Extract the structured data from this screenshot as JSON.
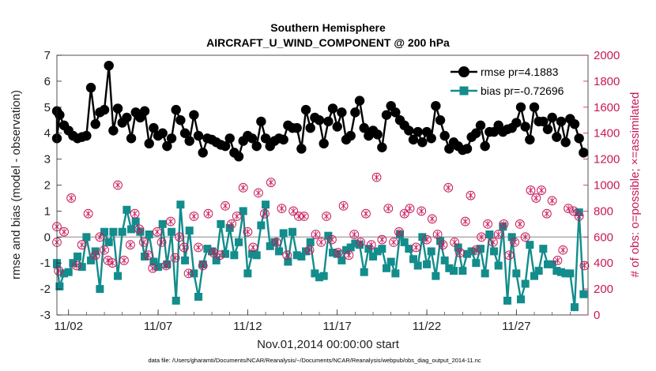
{
  "chart_data": {
    "type": "line",
    "title": "Southern Hemisphere",
    "subtitle": "AIRCRAFT_U_WIND_COMPONENT @ 200 hPa",
    "xlabel": "Nov.01,2014 00:00:00 start",
    "ylabel": "rmse and bias (model - observation)",
    "ylabel_right": "# of obs: o=possible; ×=assimilated",
    "xlim": [
      0.35,
      30.0
    ],
    "ylim": [
      -3,
      7
    ],
    "ylim_right": [
      0,
      2000
    ],
    "x_ticks": [
      {
        "value": 1,
        "label": "11/02"
      },
      {
        "value": 6,
        "label": "11/07"
      },
      {
        "value": 11,
        "label": "11/12"
      },
      {
        "value": 16,
        "label": "11/17"
      },
      {
        "value": 21,
        "label": "11/22"
      },
      {
        "value": 26,
        "label": "11/27"
      }
    ],
    "y_ticks": [
      -3,
      -2,
      -1,
      0,
      1,
      2,
      3,
      4,
      5,
      6,
      7
    ],
    "y_ticks_right": [
      0,
      200,
      400,
      600,
      800,
      1000,
      1200,
      1400,
      1600,
      1800,
      2000
    ],
    "legend": {
      "position": "top-right",
      "entries": [
        "rmse pr=4.1883",
        "bias pr=-0.72696"
      ]
    },
    "colors": {
      "rmse": "#000000",
      "bias": "#138c8c",
      "obs": "#c8185a",
      "zero_line": "#b0b0b0"
    },
    "footnote": "data file: /Users/gharamti/Documents/NCAR/Reanalysis/~/Documents/NCAR/Reanalysis/webpub/obs_diag_output_2014-11.nc",
    "series": [
      {
        "name": "rmse pr=4.1883",
        "axis": "left",
        "marker": "circle",
        "x": [
          0.0,
          0.25,
          0.5,
          0.75,
          1.0,
          1.25,
          1.5,
          1.75,
          2.0,
          2.25,
          2.5,
          2.75,
          3.0,
          3.25,
          3.5,
          3.75,
          4.0,
          4.25,
          4.5,
          4.75,
          5.0,
          5.25,
          5.5,
          5.75,
          6.0,
          6.25,
          6.5,
          6.75,
          7.0,
          7.25,
          7.5,
          7.75,
          8.0,
          8.25,
          8.5,
          8.75,
          9.0,
          9.25,
          9.5,
          9.75,
          10.0,
          10.25,
          10.5,
          10.75,
          11.0,
          11.25,
          11.5,
          11.75,
          12.0,
          12.25,
          12.5,
          12.75,
          13.0,
          13.25,
          13.5,
          13.75,
          14.0,
          14.25,
          14.5,
          14.75,
          15.0,
          15.25,
          15.5,
          15.75,
          16.0,
          16.25,
          16.5,
          16.75,
          17.0,
          17.25,
          17.5,
          17.75,
          18.0,
          18.25,
          18.5,
          18.75,
          19.0,
          19.25,
          19.5,
          19.75,
          20.0,
          20.25,
          20.5,
          20.75,
          21.0,
          21.25,
          21.5,
          21.75,
          22.0,
          22.25,
          22.5,
          22.75,
          23.0,
          23.25,
          23.5,
          23.75,
          24.0,
          24.25,
          24.5,
          24.75,
          25.0,
          25.25,
          25.5,
          25.75,
          26.0,
          26.25,
          26.5,
          26.75,
          27.0,
          27.25,
          27.5,
          27.75,
          28.0,
          28.25,
          28.5,
          28.75,
          29.0,
          29.25,
          29.5,
          29.75
        ],
        "values": [
          4.85,
          3.8,
          4.7,
          4.3,
          4.1,
          3.9,
          3.8,
          3.85,
          3.9,
          5.75,
          4.35,
          4.8,
          4.9,
          6.6,
          4.1,
          4.95,
          4.4,
          4.6,
          3.8,
          4.8,
          4.6,
          4.85,
          3.6,
          4.2,
          3.9,
          4.0,
          3.5,
          3.8,
          4.9,
          4.5,
          4.0,
          3.7,
          4.7,
          3.9,
          3.25,
          3.8,
          3.75,
          3.65,
          3.55,
          3.5,
          3.8,
          3.25,
          3.1,
          3.7,
          3.9,
          3.8,
          3.5,
          4.45,
          3.8,
          3.5,
          3.7,
          3.8,
          3.75,
          4.3,
          4.2,
          4.2,
          3.4,
          4.9,
          4.2,
          4.6,
          4.5,
          3.6,
          4.45,
          4.95,
          4.25,
          4.8,
          3.75,
          3.9,
          4.8,
          5.25,
          4.2,
          3.9,
          4.1,
          3.95,
          3.45,
          4.7,
          5.05,
          4.8,
          4.5,
          4.3,
          4.1,
          3.75,
          4.05,
          3.65,
          4.05,
          3.8,
          5.05,
          4.5,
          3.9,
          3.4,
          3.65,
          3.5,
          3.35,
          3.4,
          3.85,
          4.0,
          4.3,
          3.5,
          4.05,
          4.05,
          4.3,
          4.05,
          4.15,
          4.2,
          4.4,
          5.0,
          4.25,
          3.75,
          5.0,
          4.45,
          4.45,
          4.15,
          4.6,
          3.85,
          4.45,
          3.65,
          4.55,
          4.35,
          3.8,
          3.25
        ]
      },
      {
        "name": "bias pr=-0.72696",
        "axis": "left",
        "marker": "square",
        "x": [
          0.0,
          0.25,
          0.5,
          0.75,
          1.0,
          1.25,
          1.5,
          1.75,
          2.0,
          2.25,
          2.5,
          2.75,
          3.0,
          3.25,
          3.5,
          3.75,
          4.0,
          4.25,
          4.5,
          4.75,
          5.0,
          5.25,
          5.5,
          5.75,
          6.0,
          6.25,
          6.5,
          6.75,
          7.0,
          7.25,
          7.5,
          7.75,
          8.0,
          8.25,
          8.5,
          8.75,
          9.0,
          9.25,
          9.5,
          9.75,
          10.0,
          10.25,
          10.5,
          10.75,
          11.0,
          11.25,
          11.5,
          11.75,
          12.0,
          12.25,
          12.5,
          12.75,
          13.0,
          13.25,
          13.5,
          13.75,
          14.0,
          14.25,
          14.5,
          14.75,
          15.0,
          15.25,
          15.5,
          15.75,
          16.0,
          16.25,
          16.5,
          16.75,
          17.0,
          17.25,
          17.5,
          17.75,
          18.0,
          18.25,
          18.5,
          18.75,
          19.0,
          19.25,
          19.5,
          19.75,
          20.0,
          20.25,
          20.5,
          20.75,
          21.0,
          21.25,
          21.5,
          21.75,
          22.0,
          22.25,
          22.5,
          22.75,
          23.0,
          23.25,
          23.5,
          23.75,
          24.0,
          24.25,
          24.5,
          24.75,
          25.0,
          25.25,
          25.5,
          25.75,
          26.0,
          26.25,
          26.5,
          26.75,
          27.0,
          27.25,
          27.5,
          27.75,
          28.0,
          28.25,
          28.5,
          28.75,
          29.0,
          29.25,
          29.5,
          29.75
        ],
        "values": [
          -1.0,
          -1.05,
          -1.9,
          -1.4,
          -1.35,
          -1.0,
          -0.75,
          -1.15,
          0.0,
          -0.9,
          -0.55,
          -2.0,
          0.2,
          -0.2,
          0.2,
          -1.5,
          0.2,
          1.05,
          0.3,
          0.6,
          0.2,
          -0.75,
          0.1,
          -0.95,
          -1.15,
          0.5,
          -1.05,
          0.2,
          -2.45,
          1.25,
          -0.9,
          0.25,
          -1.4,
          -2.3,
          -1.05,
          -0.45,
          -0.55,
          -0.9,
          0.5,
          -0.65,
          0.35,
          -0.7,
          -0.2,
          1.0,
          -1.4,
          -0.65,
          -0.7,
          0.45,
          1.25,
          -0.35,
          -0.2,
          -0.55,
          0.15,
          -0.95,
          0.2,
          -0.7,
          -0.75,
          -0.55,
          -0.2,
          -1.4,
          -1.55,
          -1.5,
          0.05,
          -0.6,
          -0.65,
          -0.9,
          -0.5,
          -0.4,
          -0.25,
          -0.3,
          -1.35,
          -0.45,
          -0.75,
          -0.55,
          -0.45,
          -1.2,
          -0.95,
          -1.4,
          0.1,
          -0.2,
          -0.45,
          -0.85,
          -1.1,
          0.0,
          -1.05,
          -0.55,
          -1.5,
          -0.15,
          -0.9,
          -1.2,
          -1.3,
          -0.4,
          -1.3,
          -0.65,
          -0.55,
          -1.0,
          -0.45,
          -1.4,
          0.1,
          -0.55,
          -1.1,
          0.4,
          -2.45,
          0.0,
          -1.4,
          -2.4,
          -1.8,
          -0.3,
          -1.5,
          -1.3,
          -0.45,
          -1.05,
          -1.05,
          -1.3,
          -1.35,
          -1.4,
          -1.4,
          -2.7,
          0.95,
          -2.2
        ]
      },
      {
        "name": "",
        "axis": "right",
        "marker": "circled-star",
        "x": [
          0.0,
          0.2,
          0.45,
          0.75,
          1.15,
          1.45,
          1.75,
          2.1,
          2.5,
          2.75,
          3.0,
          3.2,
          3.45,
          3.75,
          4.1,
          4.45,
          4.7,
          4.95,
          5.2,
          5.45,
          5.7,
          5.95,
          6.2,
          6.45,
          6.7,
          6.95,
          7.2,
          7.45,
          7.7,
          8.0,
          8.25,
          8.5,
          8.8,
          9.1,
          9.45,
          9.75,
          10.1,
          10.4,
          10.75,
          11.0,
          11.3,
          11.6,
          11.95,
          12.3,
          12.6,
          12.9,
          13.2,
          13.55,
          13.85,
          14.15,
          14.45,
          14.8,
          15.1,
          15.4,
          15.7,
          16.05,
          16.35,
          16.65,
          16.95,
          17.3,
          17.6,
          17.9,
          18.2,
          18.5,
          18.85,
          19.15,
          19.45,
          19.75,
          20.05,
          20.4,
          20.7,
          21.0,
          21.3,
          21.6,
          21.9,
          22.2,
          22.55,
          22.85,
          23.15,
          23.45,
          23.75,
          24.05,
          24.4,
          24.7,
          25.0,
          25.3,
          25.6,
          25.9,
          26.2,
          26.5,
          26.8,
          27.1,
          27.4,
          27.7,
          28.0,
          28.3,
          28.6,
          28.9,
          29.2,
          29.5,
          29.8
        ],
        "values": [
          560,
          680,
          340,
          640,
          900,
          380,
          540,
          780,
          460,
          600,
          500,
          420,
          400,
          1000,
          420,
          540,
          780,
          660,
          560,
          460,
          360,
          640,
          560,
          380,
          720,
          440,
          600,
          520,
          320,
          760,
          520,
          380,
          780,
          480,
          460,
          840,
          700,
          760,
          980,
          640,
          520,
          940,
          780,
          1020,
          560,
          820,
          460,
          800,
          760,
          760,
          500,
          620,
          560,
          760,
          580,
          480,
          840,
          460,
          620,
          560,
          780,
          540,
          1060,
          580,
          820,
          560,
          640,
          780,
          820,
          520,
          800,
          580,
          740,
          620,
          540,
          980,
          560,
          480,
          720,
          920,
          500,
          600,
          700,
          560,
          620,
          700,
          460,
          560,
          700,
          600,
          960,
          900,
          960,
          780,
          880,
          420,
          500,
          820,
          800,
          760,
          380
        ]
      }
    ]
  }
}
